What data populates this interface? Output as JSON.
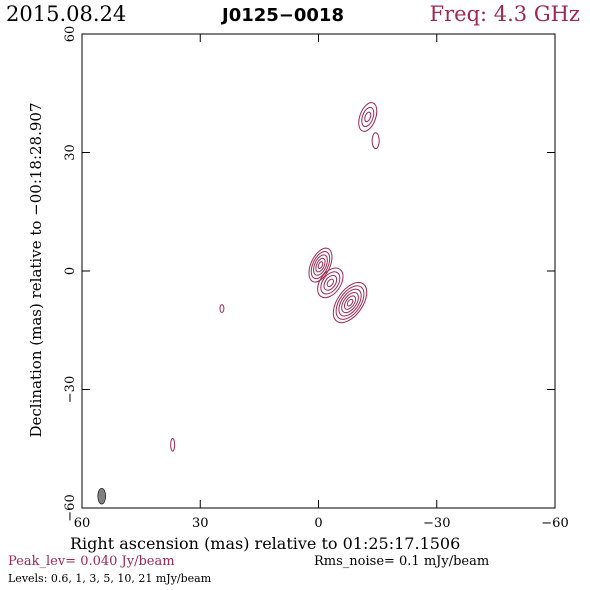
{
  "header": {
    "date": "2015.08.24",
    "source": "J0125−0018",
    "frequency": "Freq: 4.3 GHz"
  },
  "chart_data": {
    "type": "contour",
    "xlabel": "Right ascension (mas) relative to 01:25:17.1506",
    "ylabel": "Declination (mas) relative to −00:18:28.907",
    "xlim": [
      60,
      -60
    ],
    "ylim": [
      -60,
      60
    ],
    "xticks": [
      60,
      30,
      0,
      -30,
      -60
    ],
    "yticks": [
      -60,
      -30,
      0,
      30,
      60
    ],
    "xtick_labels": [
      "60",
      "30",
      "0",
      "−30",
      "−60"
    ],
    "ytick_labels": [
      "−60",
      "−30",
      "0",
      "30",
      "60"
    ],
    "contour_color": "#a0284f",
    "beam_color": "#808080",
    "components": [
      {
        "x": -8,
        "y": -8,
        "rx": 3.2,
        "ry": 5.8,
        "angle": 35,
        "levels": 6
      },
      {
        "x": -3,
        "y": -3,
        "rx": 2.6,
        "ry": 4.2,
        "angle": 35,
        "levels": 4
      },
      {
        "x": -0.5,
        "y": 1.5,
        "rx": 2.4,
        "ry": 4.6,
        "angle": 25,
        "levels": 5
      },
      {
        "x": -12.5,
        "y": 39,
        "rx": 2.0,
        "ry": 3.8,
        "angle": 20,
        "levels": 3
      },
      {
        "x": -14.5,
        "y": 33,
        "rx": 0.9,
        "ry": 2.0,
        "angle": 0,
        "levels": 1
      },
      {
        "x": 24.5,
        "y": -9.5,
        "rx": 0.5,
        "ry": 1.0,
        "angle": 0,
        "levels": 1
      },
      {
        "x": 37,
        "y": -44,
        "rx": 0.5,
        "ry": 1.6,
        "angle": 0,
        "levels": 1
      }
    ],
    "beam": {
      "x": 55,
      "y": -57,
      "rx": 1.0,
      "ry": 2.0,
      "angle": 0
    }
  },
  "footer": {
    "peak": "Peak_lev=  0.040 Jy/beam",
    "rms": "Rms_noise=   0.1 mJy/beam",
    "levels": "Levels: 0.6,    1,    3,    5,   10,   21 mJy/beam"
  }
}
